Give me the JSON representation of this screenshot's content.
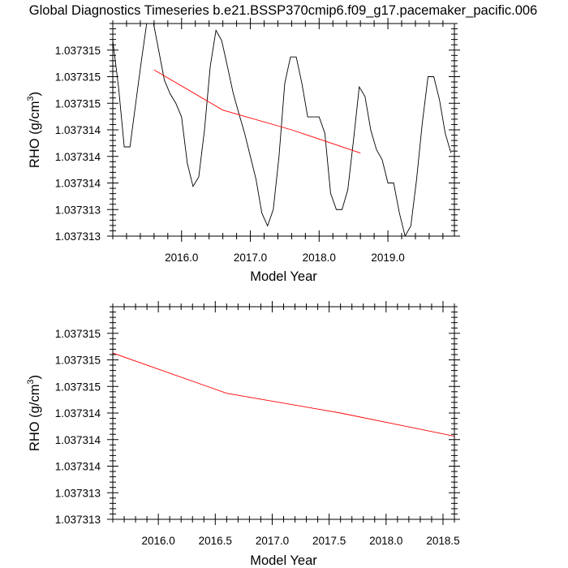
{
  "figure_title": "Global Diagnostics Timeseries b.e21.BSSP370cmip6.f09_g17.pacemaker_pacific.006",
  "colors": {
    "monthly_line": "#000000",
    "trend_line": "#ff0000",
    "frame": "#000000"
  },
  "chart_data": [
    {
      "type": "line",
      "xlabel": "Model Year",
      "ylabel_main": "RHO (g/cm",
      "ylabel_sup": "3",
      "ylabel_close": ")",
      "xlim": [
        2015.0,
        2019.9667
      ],
      "ylim": [
        1.03731262,
        1.03731574
      ],
      "x_ticks": [
        2016.0,
        2017.0,
        2018.0,
        2019.0
      ],
      "x_tick_labels": [
        "2016.0",
        "2017.0",
        "2018.0",
        "2019.0"
      ],
      "y_ticks": [
        1.03731262,
        1.03731301,
        1.0373134,
        1.03731379,
        1.03731418,
        1.03731457,
        1.03731496,
        1.03731535
      ],
      "y_tick_labels": [
        "1.037313",
        "1.037313",
        "1.037314",
        "1.037314",
        "1.037314",
        "1.037315",
        "1.037315",
        "1.037315"
      ],
      "grid": false,
      "legend": "none",
      "series": [
        {
          "color": "#000000",
          "x": [
            2015.0,
            2015.0833,
            2015.1667,
            2015.25,
            2015.3333,
            2015.4167,
            2015.5,
            2015.5833,
            2015.6667,
            2015.75,
            2015.8333,
            2015.9167,
            2016.0,
            2016.0833,
            2016.1667,
            2016.25,
            2016.3333,
            2016.4167,
            2016.5,
            2016.5833,
            2016.6667,
            2016.75,
            2016.8333,
            2016.9167,
            2017.0,
            2017.0833,
            2017.1667,
            2017.25,
            2017.3333,
            2017.4167,
            2017.5,
            2017.5833,
            2017.6667,
            2017.75,
            2017.8333,
            2017.9167,
            2018.0,
            2018.0833,
            2018.1667,
            2018.25,
            2018.3333,
            2018.4167,
            2018.5,
            2018.5833,
            2018.6667,
            2018.75,
            2018.8333,
            2018.9167,
            2019.0,
            2019.0833,
            2019.1667,
            2019.25,
            2019.3333,
            2019.4167,
            2019.5,
            2019.5833,
            2019.6667,
            2019.75,
            2019.8333,
            2019.9167
          ],
          "values": [
            1.03731549,
            1.03731481,
            1.03731393,
            1.03731393,
            1.03731457,
            1.0373152,
            1.03731579,
            1.03731579,
            1.03731535,
            1.03731491,
            1.03731471,
            1.03731457,
            1.03731437,
            1.03731369,
            1.03731335,
            1.03731349,
            1.03731418,
            1.03731511,
            1.03731564,
            1.03731549,
            1.03731511,
            1.03731472,
            1.03731442,
            1.03731413,
            1.03731379,
            1.03731345,
            1.03731296,
            1.03731277,
            1.03731301,
            1.03731379,
            1.03731486,
            1.03731525,
            1.03731525,
            1.03731486,
            1.03731437,
            1.03731437,
            1.03731437,
            1.03731413,
            1.03731325,
            1.03731301,
            1.03731301,
            1.0373133,
            1.03731403,
            1.03731481,
            1.03731467,
            1.03731418,
            1.03731389,
            1.03731374,
            1.0373134,
            1.0373134,
            1.03731296,
            1.03731262,
            1.03731277,
            1.03731345,
            1.03731428,
            1.03731496,
            1.03731496,
            1.03731462,
            1.03731413,
            1.03731384
          ]
        },
        {
          "color": "#ff0000",
          "x": [
            2015.6,
            2016.6,
            2017.6,
            2018.6
          ],
          "values": [
            1.03731506,
            1.03731447,
            1.03731418,
            1.03731384
          ]
        }
      ]
    },
    {
      "type": "line",
      "xlabel": "Model Year",
      "ylabel_main": "RHO (g/cm",
      "ylabel_sup": "3",
      "ylabel_close": ")",
      "xlim": [
        2015.6,
        2018.6
      ],
      "ylim": [
        1.03731262,
        1.03731574
      ],
      "x_ticks": [
        2016.0,
        2016.5,
        2017.0,
        2017.5,
        2018.0,
        2018.5
      ],
      "x_tick_labels": [
        "2016.0",
        "2016.5",
        "2017.0",
        "2017.5",
        "2018.0",
        "2018.5"
      ],
      "y_ticks": [
        1.03731262,
        1.03731301,
        1.0373134,
        1.03731379,
        1.03731418,
        1.03731457,
        1.03731496,
        1.03731535
      ],
      "y_tick_labels": [
        "1.037313",
        "1.037313",
        "1.037314",
        "1.037314",
        "1.037314",
        "1.037315",
        "1.037315",
        "1.037315"
      ],
      "grid": false,
      "legend": "none",
      "series": [
        {
          "color": "#ff0000",
          "x": [
            2015.6,
            2016.6,
            2017.6,
            2018.6
          ],
          "values": [
            1.03731506,
            1.03731447,
            1.03731418,
            1.03731384
          ]
        }
      ]
    }
  ]
}
